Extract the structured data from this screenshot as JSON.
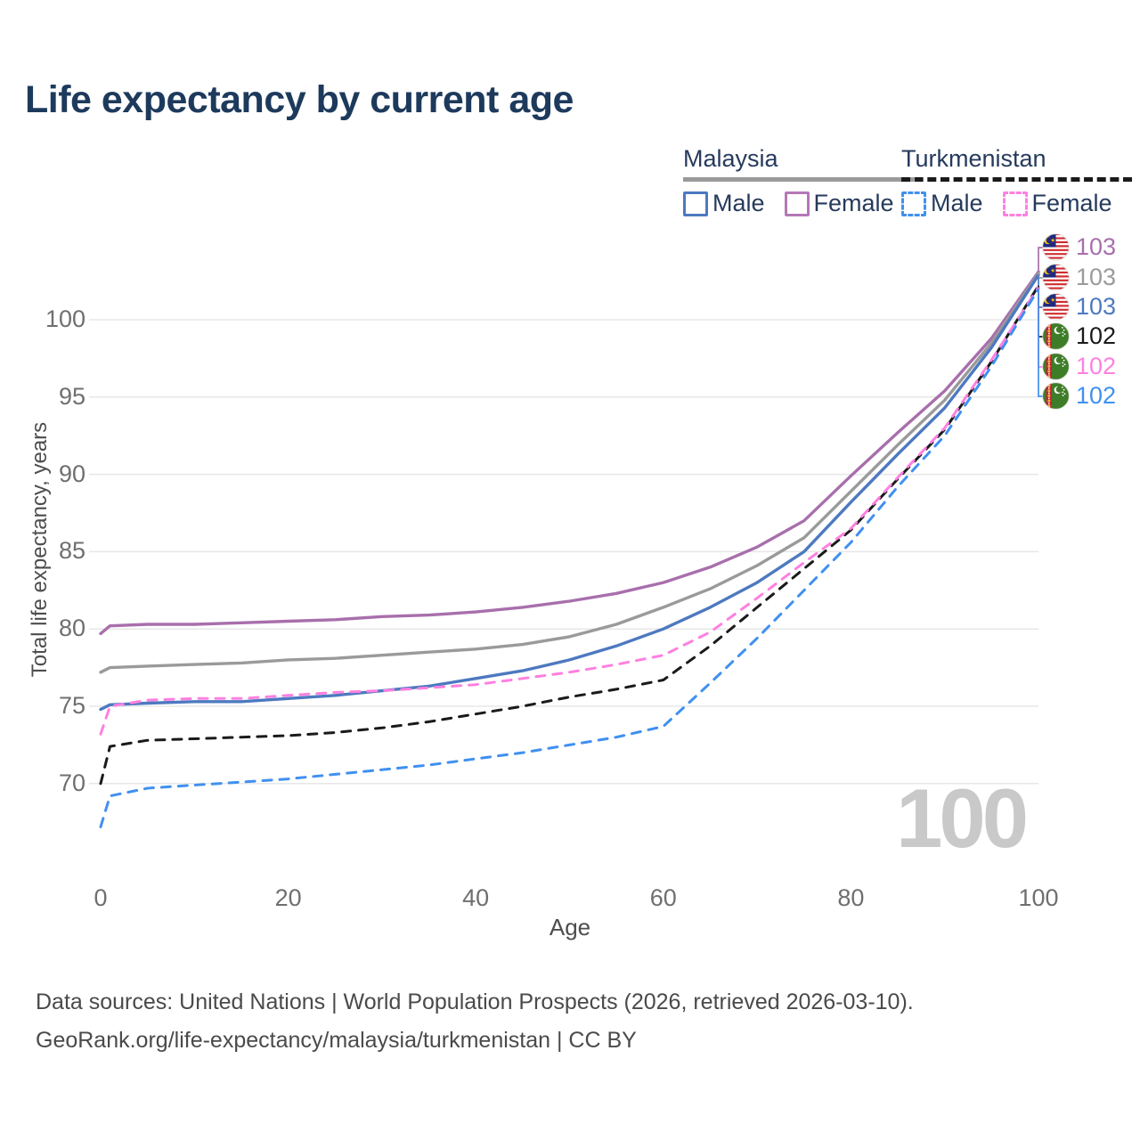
{
  "title": "Life expectancy by current age",
  "y_axis_title": "Total life expectancy, years",
  "x_axis_title": "Age",
  "watermark": "100",
  "footer": {
    "line1": "Data sources: United Nations | World Population Prospects (2026, retrieved 2026-03-10).",
    "line2": "GeoRank.org/life-expectancy/malaysia/turkmenistan | CC BY"
  },
  "colors": {
    "title_text": "#1d3a5c",
    "legend_text": "#263a5c",
    "tick_text": "#6f6f6f",
    "axis_title_text": "#4d4d4d",
    "footer_text": "#4a4a4a",
    "gridline": "#e7e7e7",
    "watermark_text": "#c9c9c9"
  },
  "legend": {
    "groups": [
      {
        "label": "Malaysia",
        "line_style": "solid",
        "line_color": "#9a9a9a",
        "items": [
          {
            "label": "Male",
            "style": "solid",
            "color": "#4d79c0"
          },
          {
            "label": "Female",
            "style": "solid",
            "color": "#b478b6"
          }
        ]
      },
      {
        "label": "Turkmenistan",
        "line_style": "dashed",
        "line_color": "#1a1a1a",
        "items": [
          {
            "label": "Male",
            "style": "dashed",
            "color": "#4090f0"
          },
          {
            "label": "Female",
            "style": "dashed",
            "color": "#ff80e0"
          }
        ]
      }
    ]
  },
  "chart_data": {
    "type": "line",
    "title": "Life expectancy by current age",
    "xlabel": "Age",
    "ylabel": "Total life expectancy, years",
    "xlim": [
      0,
      100
    ],
    "ylim": [
      66.5,
      104.5
    ],
    "x_ticks": [
      0,
      20,
      40,
      60,
      80,
      100
    ],
    "y_ticks": [
      70,
      75,
      80,
      85,
      90,
      95,
      100
    ],
    "grid": "horizontal-only",
    "legend_position": "top-right",
    "ages": [
      0,
      1,
      5,
      10,
      15,
      20,
      25,
      30,
      35,
      40,
      45,
      50,
      55,
      60,
      65,
      70,
      75,
      80,
      85,
      90,
      95,
      100
    ],
    "series": [
      {
        "name": "Malaysia — Female",
        "country": "Malaysia",
        "sex": "Female",
        "style": "solid",
        "color": "#a86fac",
        "values": [
          79.7,
          80.2,
          80.3,
          80.3,
          80.4,
          80.5,
          80.6,
          80.8,
          80.9,
          81.1,
          81.4,
          81.8,
          82.3,
          83.0,
          84.0,
          85.3,
          87.0,
          89.9,
          92.7,
          95.4,
          98.8,
          103.1
        ],
        "end_value_label": "103"
      },
      {
        "name": "Malaysia — Both sexes",
        "country": "Malaysia",
        "sex": "Both",
        "style": "solid",
        "color": "#9a9a9a",
        "values": [
          77.2,
          77.5,
          77.6,
          77.7,
          77.8,
          78.0,
          78.1,
          78.3,
          78.5,
          78.7,
          79.0,
          79.5,
          80.3,
          81.4,
          82.6,
          84.1,
          85.9,
          88.9,
          91.9,
          94.8,
          98.5,
          103.0
        ],
        "end_value_label": "103"
      },
      {
        "name": "Malaysia — Male",
        "country": "Malaysia",
        "sex": "Male",
        "style": "solid",
        "color": "#4d79c0",
        "values": [
          74.8,
          75.1,
          75.2,
          75.3,
          75.3,
          75.5,
          75.7,
          76.0,
          76.3,
          76.8,
          77.3,
          78.0,
          78.9,
          80.0,
          81.4,
          83.0,
          85.0,
          88.2,
          91.3,
          94.3,
          98.2,
          102.9
        ],
        "end_value_label": "103"
      },
      {
        "name": "Turkmenistan — Both sexes",
        "country": "Turkmenistan",
        "sex": "Both",
        "style": "dashed",
        "color": "#1a1a1a",
        "values": [
          70.0,
          72.4,
          72.8,
          72.9,
          73.0,
          73.1,
          73.3,
          73.6,
          74.0,
          74.5,
          75.0,
          75.6,
          76.1,
          76.7,
          78.9,
          81.4,
          83.9,
          86.4,
          89.7,
          92.9,
          97.3,
          102.2
        ],
        "end_value_label": "102"
      },
      {
        "name": "Turkmenistan — Female",
        "country": "Turkmenistan",
        "sex": "Female",
        "style": "dashed",
        "color": "#ff80e0",
        "values": [
          73.2,
          75.0,
          75.4,
          75.5,
          75.5,
          75.7,
          75.9,
          76.0,
          76.2,
          76.4,
          76.8,
          77.2,
          77.7,
          78.3,
          79.8,
          82.0,
          84.3,
          86.5,
          89.8,
          93.0,
          97.4,
          102.1
        ],
        "end_value_label": "102"
      },
      {
        "name": "Turkmenistan — Male",
        "country": "Turkmenistan",
        "sex": "Male",
        "style": "dashed",
        "color": "#4090f0",
        "values": [
          67.2,
          69.2,
          69.7,
          69.9,
          70.1,
          70.3,
          70.6,
          70.9,
          71.2,
          71.6,
          72.0,
          72.5,
          73.0,
          73.7,
          76.5,
          79.4,
          82.5,
          85.6,
          89.2,
          92.5,
          97.0,
          102.0
        ],
        "end_value_label": "102"
      }
    ],
    "end_labels": [
      {
        "value": "103",
        "color": "#a86fac",
        "flag": "malaysia"
      },
      {
        "value": "103",
        "color": "#9a9a9a",
        "flag": "malaysia"
      },
      {
        "value": "103",
        "color": "#4d79c0",
        "flag": "malaysia"
      },
      {
        "value": "102",
        "color": "#1a1a1a",
        "flag": "turkmenistan"
      },
      {
        "value": "102",
        "color": "#ff80e0",
        "flag": "turkmenistan"
      },
      {
        "value": "102",
        "color": "#4090f0",
        "flag": "turkmenistan"
      }
    ]
  }
}
